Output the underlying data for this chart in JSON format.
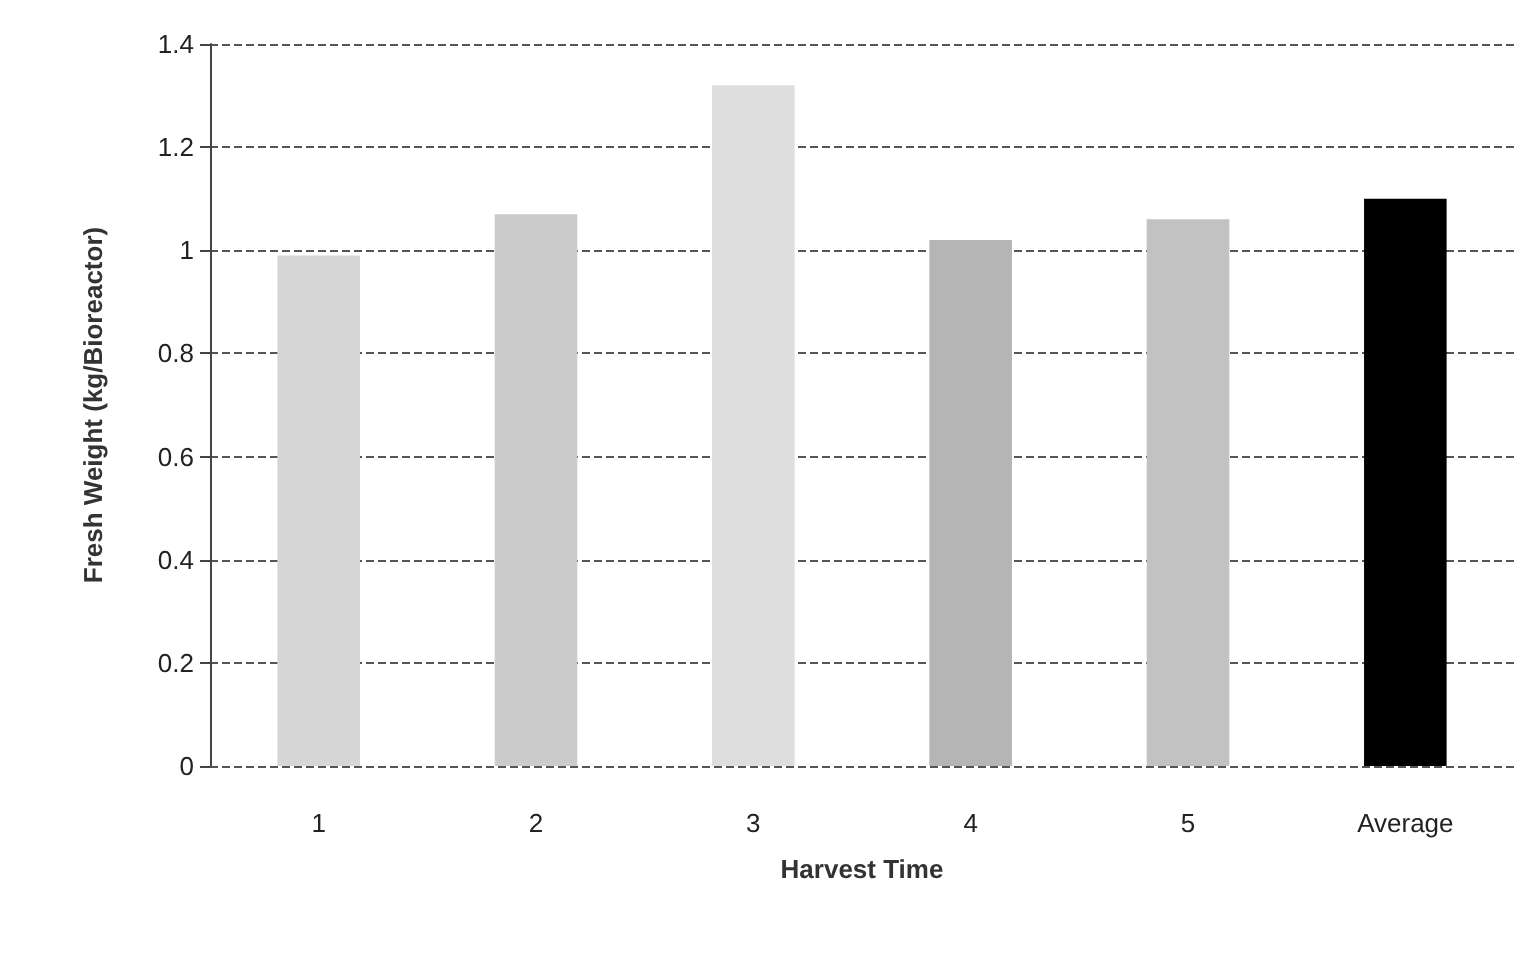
{
  "chart_data": {
    "type": "bar",
    "xlabel": "Harvest Time",
    "ylabel": "Fresh Weight (kg/Bioreactor)",
    "categories": [
      "1",
      "2",
      "3",
      "4",
      "5",
      "Average"
    ],
    "values": [
      0.99,
      1.07,
      1.32,
      1.02,
      1.06,
      1.1
    ],
    "colors": [
      "#d6d6d6",
      "#cbcbcb",
      "#dedede",
      "#b5b5b5",
      "#c2c2c2",
      "#000000"
    ],
    "ylim": [
      0,
      1.4
    ],
    "yticks": [
      0,
      0.2,
      0.4,
      0.6,
      0.8,
      1,
      1.2,
      1.4
    ],
    "grid": "y"
  }
}
